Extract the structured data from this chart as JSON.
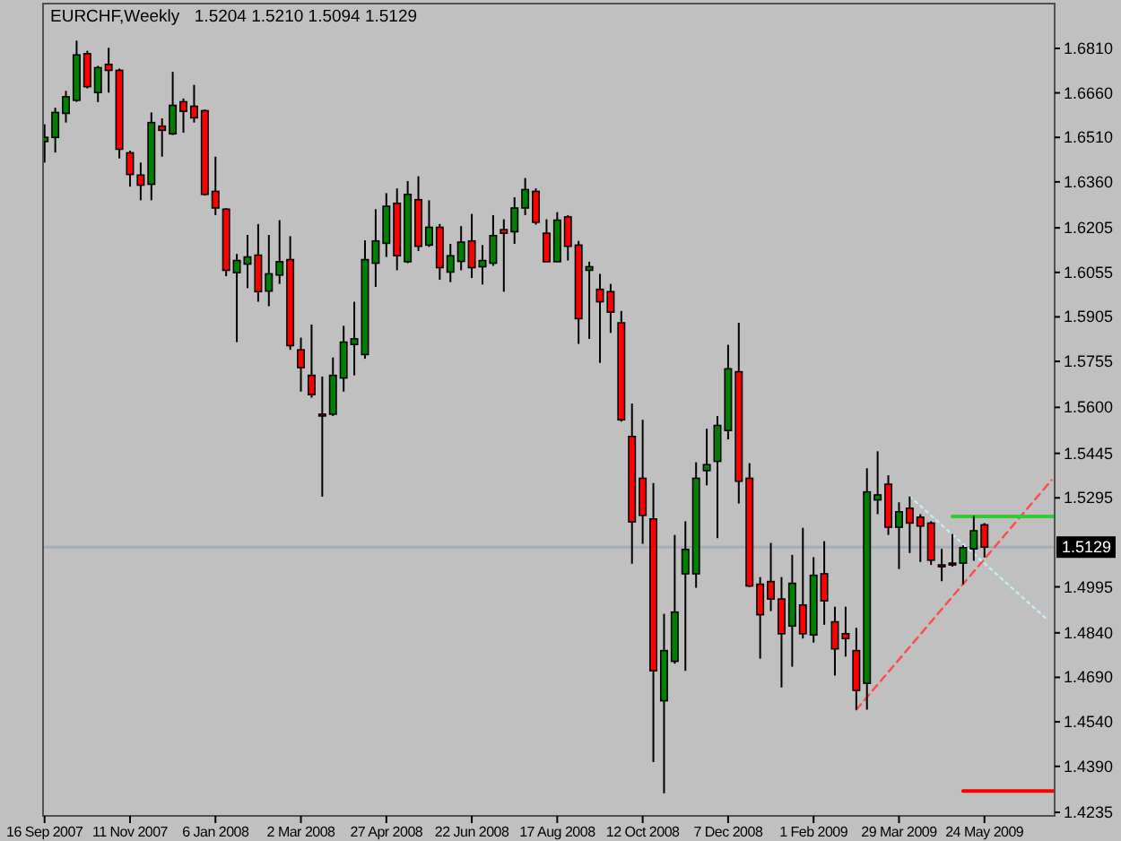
{
  "chart_data": {
    "type": "candlestick",
    "title": "EURCHF,Weekly",
    "subtitle": "1.5204 1.5210 1.5094 1.5129",
    "x": [
      "2007-09-16",
      "2007-09-23",
      "2007-09-30",
      "2007-10-07",
      "2007-10-14",
      "2007-10-21",
      "2007-10-28",
      "2007-11-04",
      "2007-11-11",
      "2007-11-18",
      "2007-11-25",
      "2007-12-02",
      "2007-12-09",
      "2007-12-16",
      "2007-12-23",
      "2007-12-30",
      "2008-01-06",
      "2008-01-13",
      "2008-01-20",
      "2008-01-27",
      "2008-02-03",
      "2008-02-10",
      "2008-02-17",
      "2008-02-24",
      "2008-03-02",
      "2008-03-09",
      "2008-03-16",
      "2008-03-23",
      "2008-03-30",
      "2008-04-06",
      "2008-04-13",
      "2008-04-20",
      "2008-04-27",
      "2008-05-04",
      "2008-05-11",
      "2008-05-18",
      "2008-05-25",
      "2008-06-01",
      "2008-06-08",
      "2008-06-15",
      "2008-06-22",
      "2008-06-29",
      "2008-07-06",
      "2008-07-13",
      "2008-07-20",
      "2008-07-27",
      "2008-08-03",
      "2008-08-10",
      "2008-08-17",
      "2008-08-24",
      "2008-08-31",
      "2008-09-07",
      "2008-09-14",
      "2008-09-21",
      "2008-09-28",
      "2008-10-05",
      "2008-10-12",
      "2008-10-19",
      "2008-10-26",
      "2008-11-02",
      "2008-11-09",
      "2008-11-16",
      "2008-11-23",
      "2008-11-30",
      "2008-12-07",
      "2008-12-14",
      "2008-12-21",
      "2008-12-28",
      "2009-01-04",
      "2009-01-11",
      "2009-01-18",
      "2009-01-25",
      "2009-02-01",
      "2009-02-08",
      "2009-02-15",
      "2009-02-22",
      "2009-03-01",
      "2009-03-08",
      "2009-03-15",
      "2009-03-22",
      "2009-03-29",
      "2009-04-05",
      "2009-04-12",
      "2009-04-19",
      "2009-04-26",
      "2009-05-03",
      "2009-05-10",
      "2009-05-17",
      "2009-05-24"
    ],
    "ohlc": [
      [
        1.6496,
        1.6554,
        1.6425,
        1.651
      ],
      [
        1.651,
        1.661,
        1.6459,
        1.6594
      ],
      [
        1.6591,
        1.6667,
        1.656,
        1.6647
      ],
      [
        1.6635,
        1.6836,
        1.663,
        1.6788
      ],
      [
        1.6792,
        1.6802,
        1.6675,
        1.6681
      ],
      [
        1.6661,
        1.6751,
        1.6629,
        1.6745
      ],
      [
        1.6756,
        1.6812,
        1.6661,
        1.6736
      ],
      [
        1.6736,
        1.6742,
        1.6439,
        1.647
      ],
      [
        1.6458,
        1.6465,
        1.6344,
        1.6385
      ],
      [
        1.6383,
        1.6425,
        1.6298,
        1.6349
      ],
      [
        1.6352,
        1.6594,
        1.6298,
        1.656
      ],
      [
        1.6548,
        1.6574,
        1.6445,
        1.6534
      ],
      [
        1.6522,
        1.6731,
        1.6518,
        1.6618
      ],
      [
        1.663,
        1.6641,
        1.6526,
        1.6598
      ],
      [
        1.6615,
        1.6687,
        1.656,
        1.6576
      ],
      [
        1.66,
        1.6604,
        1.6314,
        1.6318
      ],
      [
        1.6328,
        1.6445,
        1.6248,
        1.6272
      ],
      [
        1.6268,
        1.6272,
        1.6042,
        1.6062
      ],
      [
        1.6054,
        1.6117,
        1.582,
        1.6095
      ],
      [
        1.6083,
        1.6181,
        1.6002,
        1.6107
      ],
      [
        1.6113,
        1.6218,
        1.5956,
        1.599
      ],
      [
        1.5992,
        1.6181,
        1.5941,
        1.605
      ],
      [
        1.6046,
        1.6231,
        1.6016,
        1.6091
      ],
      [
        1.6098,
        1.6177,
        1.5794,
        1.5808
      ],
      [
        1.5794,
        1.5835,
        1.5653,
        1.5734
      ],
      [
        1.5708,
        1.5879,
        1.5633,
        1.5643
      ],
      [
        1.5577,
        1.5704,
        1.5299,
        1.5575
      ],
      [
        1.5577,
        1.5768,
        1.5571,
        1.5708
      ],
      [
        1.5699,
        1.5875,
        1.5653,
        1.582
      ],
      [
        1.5812,
        1.5956,
        1.5708,
        1.5831
      ],
      [
        1.5778,
        1.6163,
        1.5764,
        1.6098
      ],
      [
        1.6086,
        1.6268,
        1.6006,
        1.6161
      ],
      [
        1.6153,
        1.6322,
        1.6107,
        1.6278
      ],
      [
        1.6288,
        1.6338,
        1.6062,
        1.6111
      ],
      [
        1.6091,
        1.6363,
        1.6086,
        1.6318
      ],
      [
        1.63,
        1.6379,
        1.6127,
        1.6143
      ],
      [
        1.6147,
        1.6298,
        1.6141,
        1.6207
      ],
      [
        1.6207,
        1.6218,
        1.603,
        1.6071
      ],
      [
        1.6056,
        1.6151,
        1.6022,
        1.6111
      ],
      [
        1.6092,
        1.6211,
        1.6062,
        1.6157
      ],
      [
        1.6161,
        1.6252,
        1.6036,
        1.6071
      ],
      [
        1.6074,
        1.6147,
        1.6014,
        1.6095
      ],
      [
        1.6086,
        1.6248,
        1.6077,
        1.6179
      ],
      [
        1.6199,
        1.6234,
        1.599,
        1.6187
      ],
      [
        1.6192,
        1.6308,
        1.6151,
        1.6272
      ],
      [
        1.6272,
        1.6373,
        1.6248,
        1.6334
      ],
      [
        1.6328,
        1.6338,
        1.6216,
        1.6224
      ],
      [
        1.6187,
        1.6234,
        1.6091,
        1.6091
      ],
      [
        1.6091,
        1.6258,
        1.6091,
        1.6231
      ],
      [
        1.6242,
        1.6248,
        1.6095,
        1.6143
      ],
      [
        1.6147,
        1.6161,
        1.5814,
        1.5899
      ],
      [
        1.6062,
        1.6091,
        1.5831,
        1.6074
      ],
      [
        1.5998,
        1.605,
        1.575,
        1.5956
      ],
      [
        1.599,
        1.6016,
        1.5851,
        1.5921
      ],
      [
        1.5885,
        1.5925,
        1.5552,
        1.5558
      ],
      [
        1.5502,
        1.5613,
        1.5073,
        1.5214
      ],
      [
        1.5361,
        1.5558,
        1.514,
        1.5236
      ],
      [
        1.5224,
        1.5345,
        1.4404,
        1.4712
      ],
      [
        1.4611,
        1.4904,
        1.4299,
        1.478
      ],
      [
        1.4744,
        1.517,
        1.4736,
        1.491
      ],
      [
        1.5039,
        1.5216,
        1.4712,
        1.5121
      ],
      [
        1.5039,
        1.5415,
        1.4992,
        1.5361
      ],
      [
        1.5387,
        1.5528,
        1.5337,
        1.5407
      ],
      [
        1.5418,
        1.5571,
        1.5159,
        1.5539
      ],
      [
        1.5522,
        1.5811,
        1.5492,
        1.573
      ],
      [
        1.572,
        1.5885,
        1.5276,
        1.5351
      ],
      [
        1.5361,
        1.5412,
        1.4994,
        1.4998
      ],
      [
        1.5004,
        1.5028,
        1.4753,
        1.4901
      ],
      [
        1.5013,
        1.5143,
        1.4913,
        1.4954
      ],
      [
        1.4954,
        1.5028,
        1.4656,
        1.4837
      ],
      [
        1.4863,
        1.5103,
        1.4726,
        1.5007
      ],
      [
        1.4934,
        1.5194,
        1.4821,
        1.4837
      ],
      [
        1.4833,
        1.5095,
        1.4807,
        1.5034
      ],
      [
        1.5039,
        1.5149,
        1.4867,
        1.4948
      ],
      [
        1.4877,
        1.4928,
        1.4696,
        1.4786
      ],
      [
        1.4837,
        1.4928,
        1.476,
        1.4821
      ],
      [
        1.478,
        1.4857,
        1.4581,
        1.4646
      ],
      [
        1.467,
        1.5395,
        1.4581,
        1.5315
      ],
      [
        1.5288,
        1.5452,
        1.524,
        1.5305
      ],
      [
        1.5341,
        1.5371,
        1.517,
        1.5196
      ],
      [
        1.5196,
        1.528,
        1.5055,
        1.5248
      ],
      [
        1.526,
        1.53,
        1.5109,
        1.521
      ],
      [
        1.523,
        1.524,
        1.5079,
        1.52
      ],
      [
        1.521,
        1.5216,
        1.5069,
        1.5085
      ],
      [
        1.5069,
        1.5123,
        1.5014,
        1.5063
      ],
      [
        1.5075,
        1.5173,
        1.5063,
        1.5071
      ],
      [
        1.5075,
        1.5135,
        1.5004,
        1.5127
      ],
      [
        1.5123,
        1.5234,
        1.5083,
        1.5184
      ],
      [
        1.5204,
        1.521,
        1.5094,
        1.5129
      ]
    ],
    "colors": [
      "#008000",
      "#008000",
      "#008000",
      "#008000",
      "#ff0000",
      "#008000",
      "#ff0000",
      "#ff0000",
      "#ff0000",
      "#ff0000",
      "#008000",
      "#ff0000",
      "#008000",
      "#ff0000",
      "#ff0000",
      "#ff0000",
      "#ff0000",
      "#ff0000",
      "#008000",
      "#008000",
      "#ff0000",
      "#008000",
      "#008000",
      "#ff0000",
      "#ff0000",
      "#ff0000",
      "#ff0000",
      "#008000",
      "#008000",
      "#008000",
      "#008000",
      "#008000",
      "#008000",
      "#ff0000",
      "#008000",
      "#ff0000",
      "#008000",
      "#ff0000",
      "#008000",
      "#008000",
      "#ff0000",
      "#008000",
      "#008000",
      "#ff0000",
      "#008000",
      "#008000",
      "#ff0000",
      "#ff0000",
      "#008000",
      "#ff0000",
      "#ff0000",
      "#008000",
      "#ff0000",
      "#ff0000",
      "#ff0000",
      "#ff0000",
      "#ff0000",
      "#ff0000",
      "#008000",
      "#008000",
      "#008000",
      "#008000",
      "#008000",
      "#008000",
      "#008000",
      "#ff0000",
      "#ff0000",
      "#ff0000",
      "#ff0000",
      "#ff0000",
      "#008000",
      "#ff0000",
      "#008000",
      "#ff0000",
      "#ff0000",
      "#ff0000",
      "#ff0000",
      "#008000",
      "#008000",
      "#ff0000",
      "#008000",
      "#ff0000",
      "#ff0000",
      "#ff0000",
      "#ff0000",
      "#ff0000",
      "#008000",
      "#008000",
      "#ff0000"
    ],
    "series": [
      {
        "type": "line",
        "x": [
          "2009-03-01",
          "2009-07-07"
        ],
        "values": [
          1.4581,
          1.5355
        ],
        "color": "#ff4a4a",
        "line_style": "dashed"
      },
      {
        "type": "line",
        "x": [
          "2009-04-05",
          "2009-07-05"
        ],
        "values": [
          1.53,
          1.4881
        ],
        "color": "#c4ecf2",
        "line_style": "dotted"
      },
      {
        "type": "line",
        "x": [
          "2009-05-03",
          "2009-07-09"
        ],
        "values": [
          1.5232,
          1.5232
        ],
        "color": "#33cc33",
        "line_style": "solid"
      },
      {
        "type": "line",
        "x": [
          "2009-05-10",
          "2009-07-09"
        ],
        "values": [
          1.4307,
          1.4307
        ],
        "color": "#ff0000",
        "line_style": "solid"
      }
    ],
    "xlim": [
      "2007-09-15",
      "2009-07-09"
    ],
    "xticks": [
      {
        "value": "2007-09-16",
        "label": "16 Sep 2007"
      },
      {
        "value": "2007-11-11",
        "label": "11 Nov 2007"
      },
      {
        "value": "2008-01-06",
        "label": "6 Jan 2008"
      },
      {
        "value": "2008-03-02",
        "label": "2 Mar 2008"
      },
      {
        "value": "2008-04-27",
        "label": "27 Apr 2008"
      },
      {
        "value": "2008-06-22",
        "label": "22 Jun 2008"
      },
      {
        "value": "2008-08-17",
        "label": "17 Aug 2008"
      },
      {
        "value": "2008-10-12",
        "label": "12 Oct 2008"
      },
      {
        "value": "2008-12-07",
        "label": "7 Dec 2008"
      },
      {
        "value": "2009-02-01",
        "label": "1 Feb 2009"
      },
      {
        "value": "2009-03-29",
        "label": "29 Mar 2009"
      },
      {
        "value": "2009-05-24",
        "label": "24 May 2009"
      }
    ],
    "ylim": [
      1.4223,
      1.6961
    ],
    "yticks": [
      {
        "value": 1.681,
        "label": "1.6810"
      },
      {
        "value": 1.666,
        "label": "1.6660"
      },
      {
        "value": 1.651,
        "label": "1.6510"
      },
      {
        "value": 1.636,
        "label": "1.6360"
      },
      1.6205,
      1.6055,
      1.5905,
      1.5755,
      {
        "value": 1.56,
        "label": "1.5600"
      },
      1.5445,
      1.5295,
      1.4995,
      {
        "value": 1.484,
        "label": "1.4840"
      },
      {
        "value": 1.469,
        "label": "1.4690"
      },
      {
        "value": 1.454,
        "label": "1.4540"
      },
      {
        "value": 1.439,
        "label": "1.4390"
      },
      1.4235
    ],
    "ref_lines": [
      {
        "axis": "y",
        "value": 1.5129,
        "label": "1.5129",
        "color": "#a4acb6"
      }
    ]
  }
}
